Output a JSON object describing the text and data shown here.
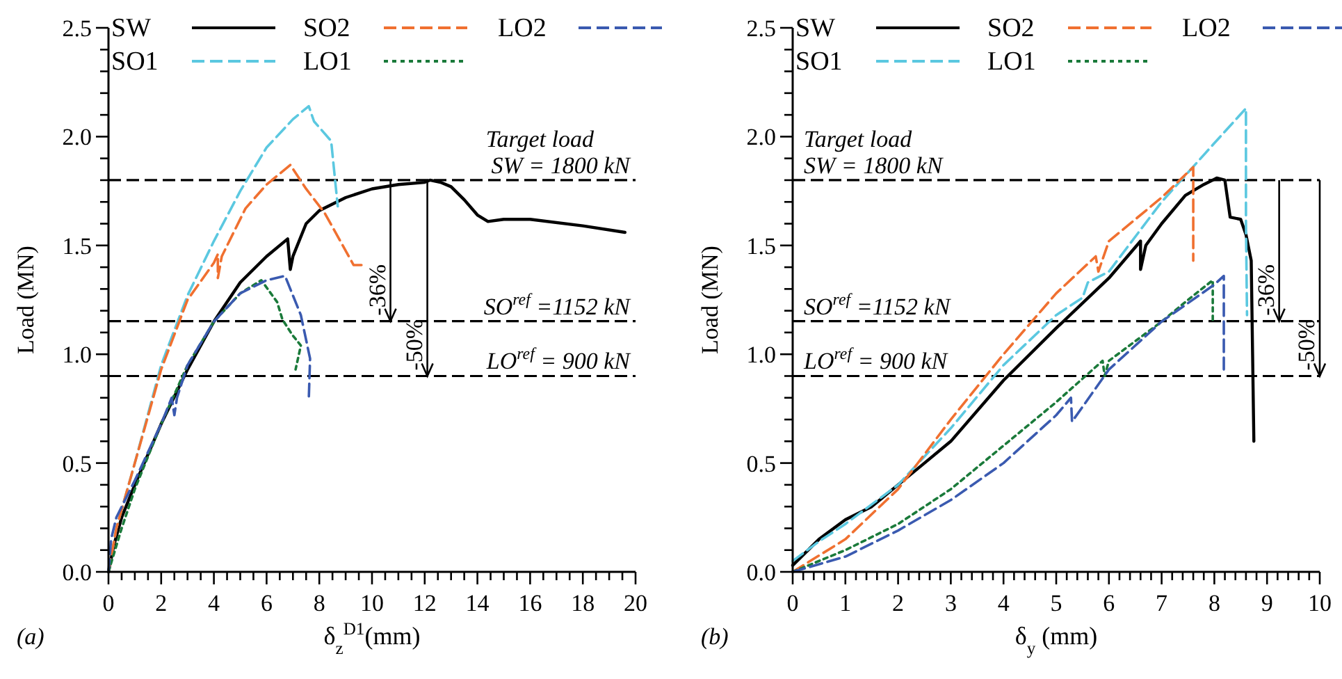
{
  "chart_data": [
    {
      "type": "line",
      "xlabel": "δ$_{z}$$^{D1}$(mm)",
      "ylabel": "Load (MN)",
      "legend": "top",
      "grid": false,
      "xlim": [
        0,
        20
      ],
      "ylim": [
        0,
        2.5
      ],
      "xticks": [
        0,
        {
          "value": 0.5,
          "label": null
        },
        {
          "value": 1,
          "label": null
        },
        {
          "value": 1.5,
          "label": null
        },
        2,
        {
          "value": 2.5,
          "label": null
        },
        {
          "value": 3,
          "label": null
        },
        {
          "value": 3.5,
          "label": null
        },
        4,
        {
          "value": 4.5,
          "label": null
        },
        {
          "value": 5,
          "label": null
        },
        {
          "value": 5.5,
          "label": null
        },
        6,
        {
          "value": 6.5,
          "label": null
        },
        {
          "value": 7,
          "label": null
        },
        {
          "value": 7.5,
          "label": null
        },
        8,
        {
          "value": 8.5,
          "label": null
        },
        {
          "value": 9,
          "label": null
        },
        {
          "value": 9.5,
          "label": null
        },
        10,
        {
          "value": 10.5,
          "label": null
        },
        {
          "value": 11,
          "label": null
        },
        {
          "value": 11.5,
          "label": null
        },
        12,
        {
          "value": 12.5,
          "label": null
        },
        {
          "value": 13,
          "label": null
        },
        {
          "value": 13.5,
          "label": null
        },
        14,
        {
          "value": 14.5,
          "label": null
        },
        {
          "value": 15,
          "label": null
        },
        {
          "value": 15.5,
          "label": null
        },
        16,
        {
          "value": 16.5,
          "label": null
        },
        {
          "value": 17,
          "label": null
        },
        {
          "value": 17.5,
          "label": null
        },
        18,
        {
          "value": 18.5,
          "label": null
        },
        {
          "value": 19,
          "label": null
        },
        {
          "value": 19.5,
          "label": null
        },
        20
      ],
      "yticks": [
        {
          "value": 0,
          "label": "0.0"
        },
        {
          "value": 0.1,
          "label": null
        },
        {
          "value": 0.2,
          "label": null
        },
        {
          "value": 0.3,
          "label": null
        },
        {
          "value": 0.4,
          "label": null
        },
        {
          "value": 0.5,
          "label": "0.5"
        },
        {
          "value": 0.6,
          "label": null
        },
        {
          "value": 0.7,
          "label": null
        },
        {
          "value": 0.8,
          "label": null
        },
        {
          "value": 0.9,
          "label": null
        },
        {
          "value": 1,
          "label": "1.0"
        },
        {
          "value": 1.1,
          "label": null
        },
        {
          "value": 1.2,
          "label": null
        },
        {
          "value": 1.3,
          "label": null
        },
        {
          "value": 1.4,
          "label": null
        },
        {
          "value": 1.5,
          "label": "1.5"
        },
        {
          "value": 1.6,
          "label": null
        },
        {
          "value": 1.7,
          "label": null
        },
        {
          "value": 1.8,
          "label": null
        },
        {
          "value": 1.9,
          "label": null
        },
        {
          "value": 2,
          "label": "2.0"
        },
        {
          "value": 2.1,
          "label": null
        },
        {
          "value": 2.2,
          "label": null
        },
        {
          "value": 2.3,
          "label": null
        },
        {
          "value": 2.4,
          "label": null
        },
        {
          "value": 2.5,
          "label": "2.5"
        }
      ],
      "series": [
        {
          "name": "SW",
          "color": "#000000",
          "line_style": "solid",
          "x": [
            0,
            0.2,
            0.5,
            1,
            2,
            3,
            4,
            5,
            6,
            6.8,
            6.9,
            7,
            7.5,
            8,
            9,
            10,
            11,
            12,
            12.2,
            12.6,
            13,
            13.5,
            14,
            14.4,
            15,
            16,
            18,
            19.6
          ],
          "values": [
            0,
            0.12,
            0.25,
            0.4,
            0.68,
            0.93,
            1.15,
            1.33,
            1.45,
            1.53,
            1.39,
            1.45,
            1.6,
            1.66,
            1.72,
            1.76,
            1.78,
            1.79,
            1.8,
            1.79,
            1.77,
            1.71,
            1.64,
            1.61,
            1.62,
            1.62,
            1.59,
            1.56
          ]
        },
        {
          "name": "SO1",
          "color": "#5bc8e0",
          "line_style": "dashed",
          "x": [
            0,
            0.3,
            1,
            2,
            3,
            4,
            5,
            6,
            7,
            7.6,
            7.8,
            8.45,
            8.7
          ],
          "values": [
            0,
            0.2,
            0.5,
            0.95,
            1.27,
            1.52,
            1.75,
            1.95,
            2.08,
            2.14,
            2.07,
            1.98,
            1.68
          ]
        },
        {
          "name": "SO2",
          "color": "#f07030",
          "line_style": "dashed",
          "x": [
            0,
            0.3,
            1,
            2,
            3,
            4,
            4.15,
            4.15,
            4.3,
            5.2,
            6,
            6.9,
            7.5,
            8.2,
            9.3,
            9.6
          ],
          "values": [
            0,
            0.2,
            0.5,
            0.93,
            1.25,
            1.42,
            1.46,
            1.35,
            1.45,
            1.67,
            1.78,
            1.87,
            1.76,
            1.65,
            1.41,
            1.41
          ]
        },
        {
          "name": "LO1",
          "color": "#1a7a3a",
          "line_style": "dotted",
          "x": [
            0,
            0.5,
            1,
            2,
            3,
            4,
            5,
            5.8,
            6.4,
            6.6,
            6.97,
            7.3,
            7.1
          ],
          "values": [
            0,
            0.2,
            0.38,
            0.68,
            0.95,
            1.15,
            1.28,
            1.34,
            1.24,
            1.16,
            1.09,
            1.04,
            0.93
          ]
        },
        {
          "name": "LO2",
          "color": "#3a5ab0",
          "line_style": "dashed",
          "x": [
            0,
            0.1,
            0.3,
            1,
            2,
            2.4,
            2.5,
            2.6,
            3,
            4,
            5,
            6,
            6.7,
            7.3,
            7.65,
            7.6
          ],
          "values": [
            0,
            0.15,
            0.25,
            0.42,
            0.68,
            0.8,
            0.72,
            0.8,
            0.95,
            1.15,
            1.28,
            1.34,
            1.36,
            1.18,
            0.98,
            0.79
          ]
        }
      ],
      "ref_lines": [
        {
          "axis": "y",
          "value": 1.8,
          "label": "SW = 1800 kN",
          "color": "#000000",
          "line_style": "dashed"
        },
        {
          "axis": "y",
          "value": 1.152,
          "label": "SO$^{ref}$ =1152 kN",
          "color": "#000000",
          "line_style": "dashed"
        },
        {
          "axis": "y",
          "value": 0.9,
          "label": "LO$^{ref}$ = 900 kN",
          "color": "#000000",
          "line_style": "dashed"
        }
      ],
      "annotations": [
        "Target load",
        "(a)",
        {
          "text": "-36%",
          "x": 10.7,
          "y": 1.152
        },
        {
          "text": "-50%",
          "x": 12.1,
          "y": 0.9
        }
      ]
    },
    {
      "type": "line",
      "xlabel": "δ$_{y}$ (mm)",
      "ylabel": "Load (MN)",
      "legend": "top",
      "grid": false,
      "xlim": [
        0,
        10
      ],
      "ylim": [
        0,
        2.5
      ],
      "xticks": [
        0,
        {
          "value": 0.2,
          "label": null
        },
        {
          "value": 0.4,
          "label": null
        },
        {
          "value": 0.6,
          "label": null
        },
        {
          "value": 0.8,
          "label": null
        },
        1,
        {
          "value": 1.2,
          "label": null
        },
        {
          "value": 1.4,
          "label": null
        },
        {
          "value": 1.6,
          "label": null
        },
        {
          "value": 1.8,
          "label": null
        },
        2,
        {
          "value": 2.2,
          "label": null
        },
        {
          "value": 2.4,
          "label": null
        },
        {
          "value": 2.6,
          "label": null
        },
        {
          "value": 2.8,
          "label": null
        },
        3,
        {
          "value": 3.2,
          "label": null
        },
        {
          "value": 3.4,
          "label": null
        },
        {
          "value": 3.6,
          "label": null
        },
        {
          "value": 3.8,
          "label": null
        },
        4,
        {
          "value": 4.2,
          "label": null
        },
        {
          "value": 4.4,
          "label": null
        },
        {
          "value": 4.6,
          "label": null
        },
        {
          "value": 4.8,
          "label": null
        },
        5,
        {
          "value": 5.2,
          "label": null
        },
        {
          "value": 5.4,
          "label": null
        },
        {
          "value": 5.6,
          "label": null
        },
        {
          "value": 5.8,
          "label": null
        },
        6,
        {
          "value": 6.2,
          "label": null
        },
        {
          "value": 6.4,
          "label": null
        },
        {
          "value": 6.6,
          "label": null
        },
        {
          "value": 6.8,
          "label": null
        },
        7,
        {
          "value": 7.2,
          "label": null
        },
        {
          "value": 7.4,
          "label": null
        },
        {
          "value": 7.6,
          "label": null
        },
        {
          "value": 7.8,
          "label": null
        },
        8,
        {
          "value": 8.2,
          "label": null
        },
        {
          "value": 8.4,
          "label": null
        },
        {
          "value": 8.6,
          "label": null
        },
        {
          "value": 8.8,
          "label": null
        },
        9,
        {
          "value": 9.2,
          "label": null
        },
        {
          "value": 9.4,
          "label": null
        },
        {
          "value": 9.6,
          "label": null
        },
        {
          "value": 9.8,
          "label": null
        },
        10
      ],
      "yticks": [
        {
          "value": 0,
          "label": "0.0"
        },
        {
          "value": 0.1,
          "label": null
        },
        {
          "value": 0.2,
          "label": null
        },
        {
          "value": 0.3,
          "label": null
        },
        {
          "value": 0.4,
          "label": null
        },
        {
          "value": 0.5,
          "label": "0.5"
        },
        {
          "value": 0.6,
          "label": null
        },
        {
          "value": 0.7,
          "label": null
        },
        {
          "value": 0.8,
          "label": null
        },
        {
          "value": 0.9,
          "label": null
        },
        {
          "value": 1,
          "label": "1.0"
        },
        {
          "value": 1.1,
          "label": null
        },
        {
          "value": 1.2,
          "label": null
        },
        {
          "value": 1.3,
          "label": null
        },
        {
          "value": 1.4,
          "label": null
        },
        {
          "value": 1.5,
          "label": "1.5"
        },
        {
          "value": 1.6,
          "label": null
        },
        {
          "value": 1.7,
          "label": null
        },
        {
          "value": 1.8,
          "label": null
        },
        {
          "value": 1.9,
          "label": null
        },
        {
          "value": 2,
          "label": "2.0"
        },
        {
          "value": 2.1,
          "label": null
        },
        {
          "value": 2.2,
          "label": null
        },
        {
          "value": 2.3,
          "label": null
        },
        {
          "value": 2.4,
          "label": null
        },
        {
          "value": 2.5,
          "label": "2.5"
        }
      ],
      "series": [
        {
          "name": "SW",
          "color": "#000000",
          "line_style": "solid",
          "x": [
            0,
            0.5,
            1,
            1.5,
            2,
            2.5,
            3,
            4,
            5,
            6,
            6.6,
            6.6,
            6.7,
            7,
            7.45,
            7.8,
            8.05,
            8.2,
            8.3,
            8.5,
            8.6,
            8.7,
            8.75
          ],
          "values": [
            0.03,
            0.15,
            0.24,
            0.3,
            0.4,
            0.5,
            0.6,
            0.88,
            1.12,
            1.35,
            1.52,
            1.39,
            1.5,
            1.6,
            1.73,
            1.78,
            1.81,
            1.8,
            1.63,
            1.62,
            1.55,
            1.43,
            0.6
          ]
        },
        {
          "name": "SO1",
          "color": "#5bc8e0",
          "line_style": "dashed",
          "x": [
            0,
            0.5,
            1,
            2,
            3,
            4,
            5,
            5.5,
            5.6,
            6,
            7,
            8,
            8.6,
            8.6,
            8.62
          ],
          "values": [
            0.05,
            0.14,
            0.22,
            0.4,
            0.66,
            0.95,
            1.18,
            1.26,
            1.33,
            1.38,
            1.7,
            1.97,
            2.13,
            1.6,
            1.18
          ]
        },
        {
          "name": "SO2",
          "color": "#f07030",
          "line_style": "dashed",
          "x": [
            0,
            1,
            2,
            3,
            4,
            5,
            5.75,
            5.8,
            6,
            7,
            7.6,
            7.6
          ],
          "values": [
            0,
            0.15,
            0.38,
            0.7,
            1,
            1.28,
            1.45,
            1.38,
            1.52,
            1.72,
            1.86,
            1.43
          ]
        },
        {
          "name": "LO1",
          "color": "#1a7a3a",
          "line_style": "dotted",
          "x": [
            0,
            1,
            2,
            3,
            4,
            5,
            5.88,
            5.92,
            6,
            7,
            7.5,
            7.97,
            7.97
          ],
          "values": [
            0,
            0.1,
            0.22,
            0.38,
            0.58,
            0.78,
            0.97,
            0.9,
            0.97,
            1.15,
            1.25,
            1.34,
            1.14
          ]
        },
        {
          "name": "LO2",
          "color": "#3a5ab0",
          "line_style": "dashed",
          "x": [
            0,
            1,
            2,
            3,
            4,
            5,
            5.28,
            5.3,
            6,
            7,
            8,
            8.18,
            8.18
          ],
          "values": [
            0,
            0.07,
            0.19,
            0.33,
            0.5,
            0.72,
            0.8,
            0.69,
            0.93,
            1.15,
            1.32,
            1.36,
            0.93
          ]
        }
      ],
      "ref_lines": [
        {
          "axis": "y",
          "value": 1.8,
          "label": "SW = 1800 kN",
          "color": "#000000",
          "line_style": "dashed"
        },
        {
          "axis": "y",
          "value": 1.152,
          "label": "SO$^{ref}$ =1152 kN",
          "color": "#000000",
          "line_style": "dashed"
        },
        {
          "axis": "y",
          "value": 0.9,
          "label": "LO$^{ref}$ = 900 kN",
          "color": "#000000",
          "line_style": "dashed"
        }
      ],
      "annotations": [
        "Target load",
        "(b)",
        {
          "text": "-36%",
          "x": 9.23,
          "y": 1.152
        },
        {
          "text": "-50%",
          "x": 10,
          "y": 0.9
        }
      ]
    }
  ]
}
